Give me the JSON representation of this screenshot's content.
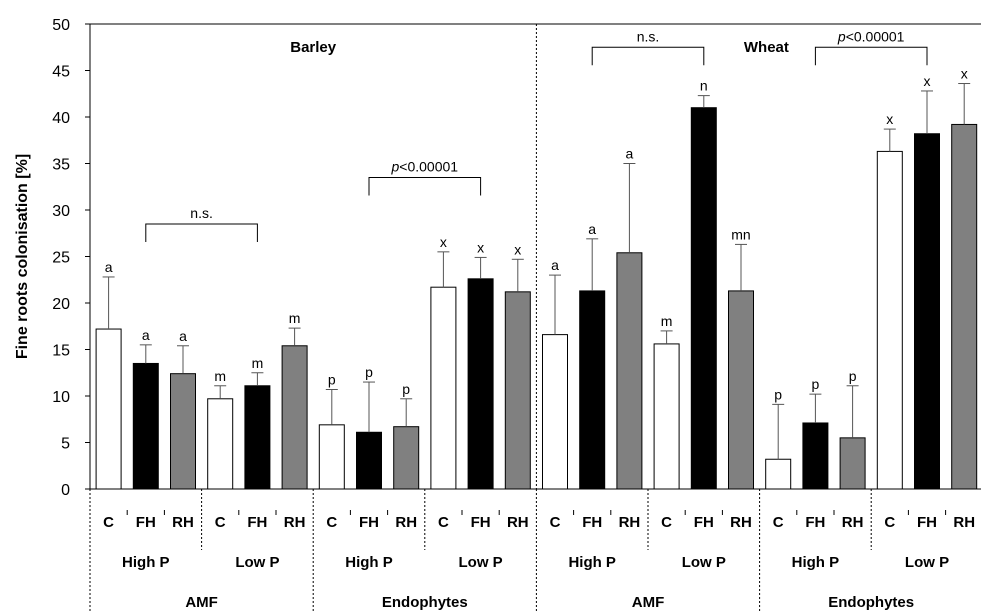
{
  "chart_data": {
    "type": "bar",
    "ylabel": "Fine roots colonisation [%]",
    "ylim": [
      0,
      50
    ],
    "yticks": [
      0,
      5,
      10,
      15,
      20,
      25,
      30,
      35,
      40,
      45,
      50
    ],
    "treatment_labels": [
      "C",
      "FH",
      "RH"
    ],
    "colors": {
      "C": "#ffffff",
      "FH": "#000000",
      "RH": "#808080",
      "edge": "#000000"
    },
    "crops": [
      {
        "name": "Barley",
        "groups": [
          {
            "fungus": "AMF",
            "phosphorus": "High P",
            "values": [
              17.2,
              13.5,
              12.4
            ],
            "errors": [
              5.6,
              2.0,
              3.0
            ],
            "letters": [
              "a",
              "a",
              "a"
            ]
          },
          {
            "fungus": "AMF",
            "phosphorus": "Low P",
            "values": [
              9.7,
              11.1,
              15.4
            ],
            "errors": [
              1.4,
              1.4,
              1.9
            ],
            "letters": [
              "m",
              "m",
              "m"
            ]
          },
          {
            "fungus": "Endophytes",
            "phosphorus": "High P",
            "values": [
              6.9,
              6.1,
              6.7
            ],
            "errors": [
              3.8,
              5.4,
              3.0
            ],
            "letters": [
              "p",
              "p",
              "p"
            ]
          },
          {
            "fungus": "Endophytes",
            "phosphorus": "Low P",
            "values": [
              21.7,
              22.6,
              21.2
            ],
            "errors": [
              3.8,
              2.3,
              3.5
            ],
            "letters": [
              "x",
              "x",
              "x"
            ]
          }
        ],
        "comparisons": [
          {
            "label": "n.s.",
            "fungus": "AMF",
            "from_group": 0,
            "to_group": 1,
            "y": 28.5
          },
          {
            "label_italic": "p",
            "label": "<0.00001",
            "fungus": "Endophytes",
            "from_group": 2,
            "to_group": 3,
            "y": 33.5
          }
        ]
      },
      {
        "name": "Wheat",
        "groups": [
          {
            "fungus": "AMF",
            "phosphorus": "High P",
            "values": [
              16.6,
              21.3,
              25.4
            ],
            "errors": [
              6.4,
              5.6,
              9.6
            ],
            "letters": [
              "a",
              "a",
              "a"
            ]
          },
          {
            "fungus": "AMF",
            "phosphorus": "Low P",
            "values": [
              15.6,
              41.0,
              21.3
            ],
            "errors": [
              1.4,
              1.3,
              5.0
            ],
            "letters": [
              "m",
              "n",
              "mn"
            ]
          },
          {
            "fungus": "Endophytes",
            "phosphorus": "High P",
            "values": [
              3.2,
              7.1,
              5.5
            ],
            "errors": [
              5.9,
              3.1,
              5.6
            ],
            "letters": [
              "p",
              "p",
              "p"
            ]
          },
          {
            "fungus": "Endophytes",
            "phosphorus": "Low P",
            "values": [
              36.3,
              38.2,
              39.2
            ],
            "errors": [
              2.4,
              4.6,
              4.4
            ],
            "letters": [
              "x",
              "x",
              "x"
            ]
          }
        ],
        "comparisons": [
          {
            "label": "n.s.",
            "fungus": "AMF",
            "from_group": 0,
            "to_group": 1,
            "y": 47.5
          },
          {
            "label_italic": "p",
            "label": "<0.00001",
            "fungus": "Endophytes",
            "from_group": 2,
            "to_group": 3,
            "y": 47.5
          }
        ]
      }
    ]
  }
}
